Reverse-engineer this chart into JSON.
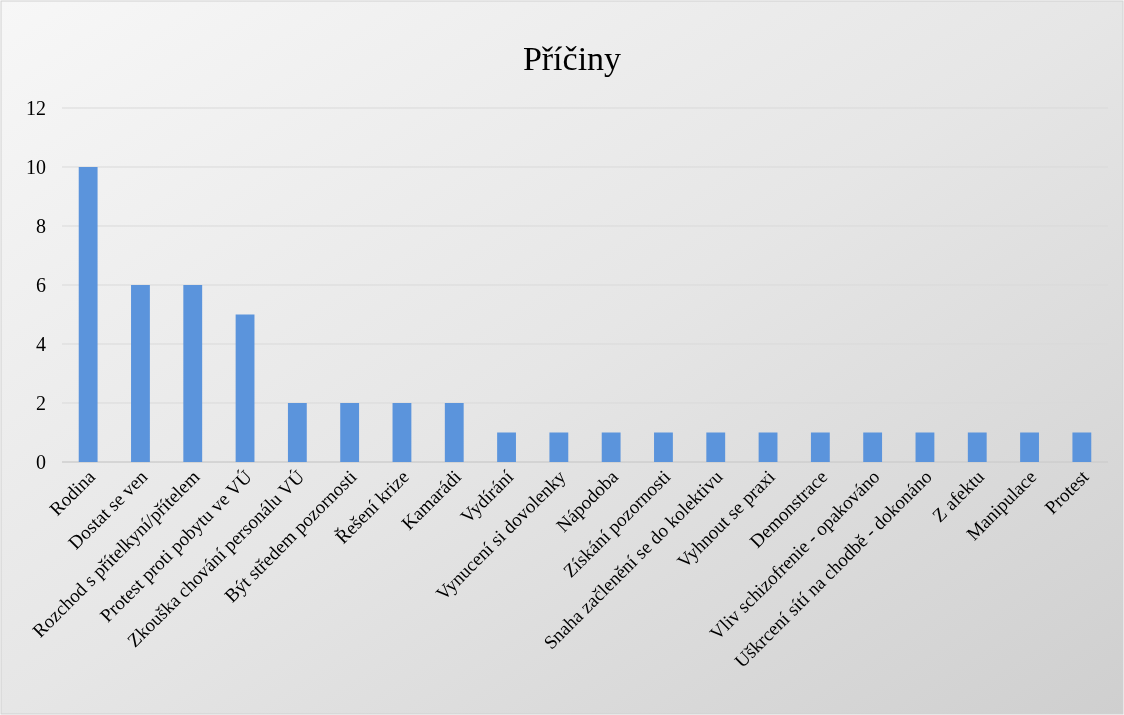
{
  "chart_data": {
    "type": "bar",
    "title": "Příčiny",
    "categories": [
      "Rodina",
      "Dostat se ven",
      "Rozchod s přítelkyní/přítelem",
      "Protest proti pobytu ve VÚ",
      "Zkouška chování personálu VÚ",
      "Být středem pozornosti",
      "Řešení krize",
      "Kamarádi",
      "Vydírání",
      "Vynucení si dovolenky",
      "Nápodoba",
      "Získání pozornosti",
      "Snaha začlenění se do kolektivu",
      "Vyhnout se praxi",
      "Demonstrace",
      "Vliv schizofrenie - opakováno",
      "Uškrcení sítí na chodbě - dokonáno",
      "Z afektu",
      "Manipulace",
      "Protest"
    ],
    "values": [
      10,
      6,
      6,
      5,
      2,
      2,
      2,
      2,
      1,
      1,
      1,
      1,
      1,
      1,
      1,
      1,
      1,
      1,
      1,
      1
    ],
    "color": "#5b94dc",
    "ylim": [
      0,
      12
    ],
    "yticks": [
      0,
      2,
      4,
      6,
      8,
      10,
      12
    ],
    "grid": "y"
  }
}
